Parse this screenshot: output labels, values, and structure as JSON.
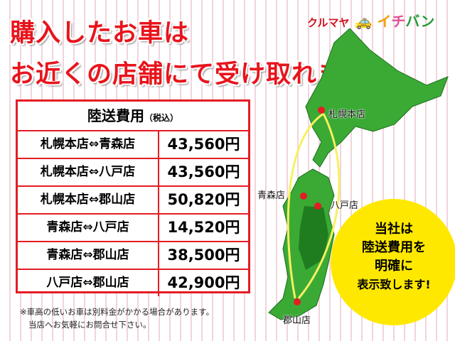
{
  "headline": {
    "line1": "購入したお車は",
    "line2": "お近くの店舗にて受け取れます!"
  },
  "logo": {
    "part1": "クルマヤ",
    "part2": "イ",
    "part3": "チ",
    "part4": "バン",
    "icon": "car-icon"
  },
  "table": {
    "title": "陸送費用",
    "title_note": "（税込）",
    "rows": [
      {
        "route": "札幌本店⇔青森店",
        "price": "43,560円"
      },
      {
        "route": "札幌本店⇔八戸店",
        "price": "43,560円"
      },
      {
        "route": "札幌本店⇔郡山店",
        "price": "50,820円"
      },
      {
        "route": "青森店⇔八戸店",
        "price": "14,520円"
      },
      {
        "route": "青森店⇔郡山店",
        "price": "38,500円"
      },
      {
        "route": "八戸店⇔郡山店",
        "price": "42,900円"
      }
    ]
  },
  "note": {
    "line1": "※車高の低いお車は別料金がかかる場合があります。",
    "line2": "当店へお気軽にお問合せ下さい。"
  },
  "map": {
    "stores": [
      "札幌本店",
      "青森店",
      "八戸店",
      "郡山店"
    ]
  },
  "badge": {
    "line1": "当社は",
    "line2": "陸送費用を",
    "line3": "明確に",
    "line4": "表示致します!"
  },
  "colors": {
    "accent": "#e51c23",
    "badge": "#ffe800",
    "map_land": "#3aaa35"
  }
}
